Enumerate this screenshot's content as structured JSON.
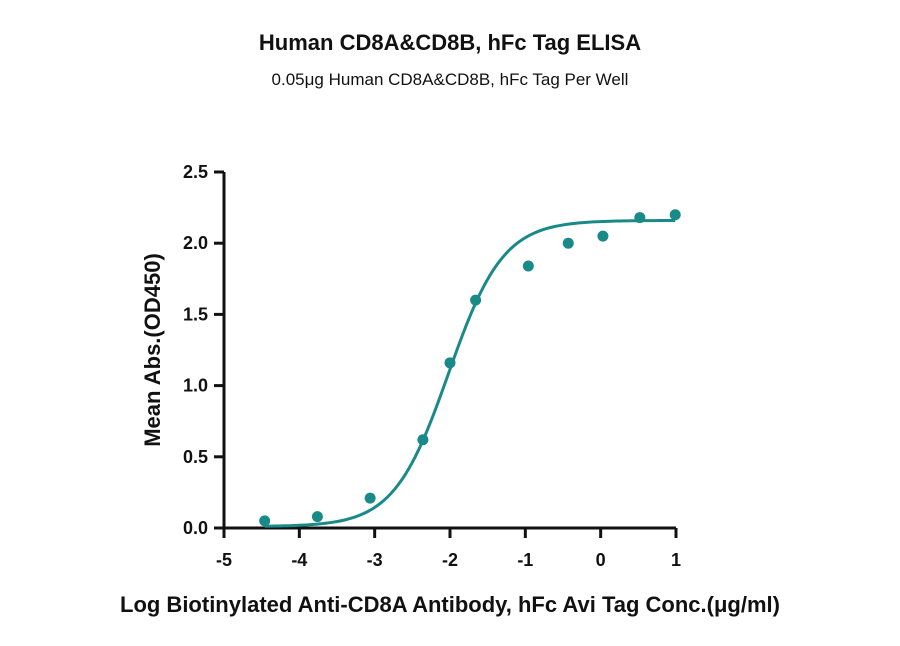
{
  "title": "Human CD8A&CD8B, hFc Tag ELISA",
  "subtitle": "0.05μg Human CD8A&CD8B, hFc Tag Per Well",
  "colors": {
    "series": "#1a8a88",
    "axis": "#111111"
  },
  "chart_data": {
    "type": "scatter",
    "title": "Human CD8A&CD8B, hFc Tag ELISA",
    "subtitle": "0.05μg Human CD8A&CD8B, hFc Tag Per Well",
    "xlabel": "Log Biotinylated Anti-CD8A Antibody, hFc Avi Tag Conc.(μg/ml)",
    "ylabel": "Mean Abs.(OD450)",
    "xlim": [
      -5,
      1
    ],
    "ylim": [
      0,
      2.5
    ],
    "xticks": [
      "-5",
      "-4",
      "-3",
      "-2",
      "-1",
      "0",
      "1"
    ],
    "yticks": [
      "0.0",
      "0.5",
      "1.0",
      "1.5",
      "2.0",
      "2.5"
    ],
    "grid": false,
    "series": [
      {
        "points": [
          {
            "x": -4.46,
            "y": 0.05
          },
          {
            "x": -3.76,
            "y": 0.08
          },
          {
            "x": -3.06,
            "y": 0.21
          },
          {
            "x": -2.36,
            "y": 0.62
          },
          {
            "x": -2.0,
            "y": 1.16
          },
          {
            "x": -1.66,
            "y": 1.6
          },
          {
            "x": -0.96,
            "y": 1.84
          },
          {
            "x": -0.43,
            "y": 2.0
          },
          {
            "x": 0.03,
            "y": 2.05
          },
          {
            "x": 0.52,
            "y": 2.18
          },
          {
            "x": 0.99,
            "y": 2.2
          }
        ],
        "fit": {
          "type": "4PL",
          "bottom": 0.01,
          "top": 2.16,
          "logEC50": -2.02,
          "hill": 1.2
        }
      }
    ]
  }
}
